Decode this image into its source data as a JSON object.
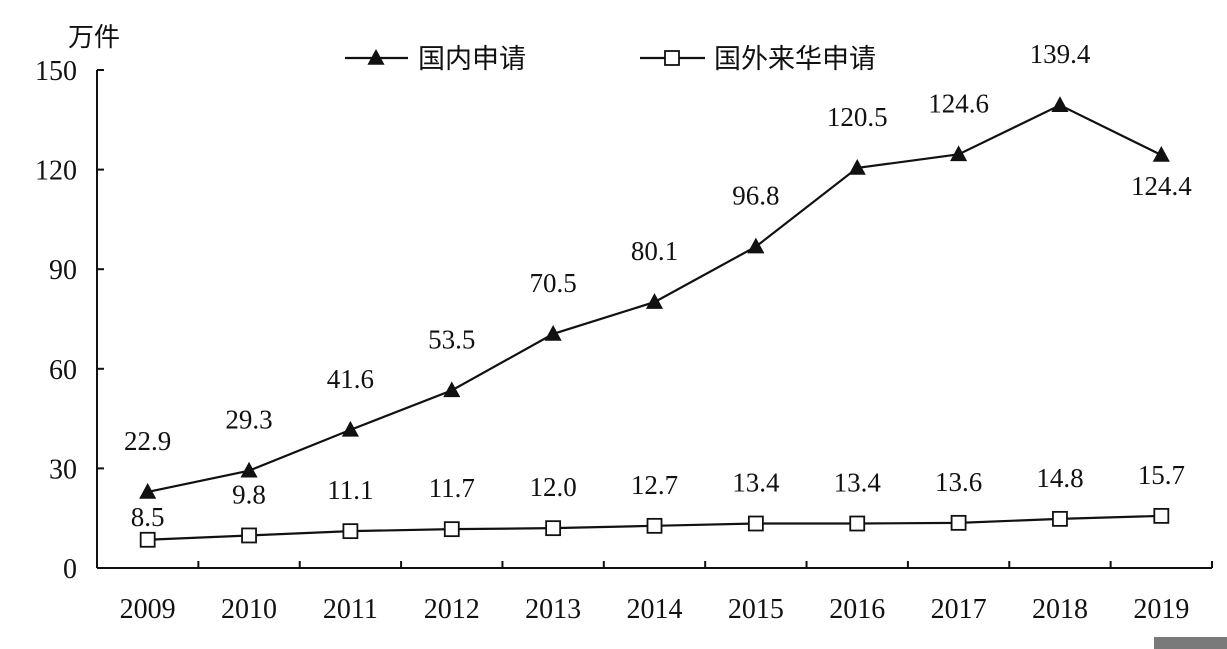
{
  "chart_data": {
    "type": "line",
    "title": "",
    "ylabel": "万件",
    "xlabel": "",
    "ylim": [
      0,
      150
    ],
    "yticks": [
      0,
      30,
      60,
      90,
      120,
      150
    ],
    "grid": false,
    "legend": "top-center",
    "categories": [
      "2009",
      "2010",
      "2011",
      "2012",
      "2013",
      "2014",
      "2015",
      "2016",
      "2017",
      "2018",
      "2019"
    ],
    "series": [
      {
        "name": "国内申请",
        "marker": "filled-triangle",
        "values": [
          22.9,
          29.3,
          41.6,
          53.5,
          70.5,
          80.1,
          96.8,
          120.5,
          124.6,
          139.4,
          124.4
        ],
        "labels": [
          "22.9",
          "29.3",
          "41.6",
          "53.5",
          "70.5",
          "80.1",
          "96.8",
          "120.5",
          "124.6",
          "139.4",
          "124.4"
        ]
      },
      {
        "name": "国外来华申请",
        "marker": "hollow-square",
        "values": [
          8.5,
          9.8,
          11.1,
          11.7,
          12.0,
          12.7,
          13.4,
          13.4,
          13.6,
          14.8,
          15.7
        ],
        "labels": [
          "8.5",
          "9.8",
          "11.1",
          "11.7",
          "12.0",
          "12.7",
          "13.4",
          "13.4",
          "13.6",
          "14.8",
          "15.7"
        ]
      }
    ],
    "colors": {
      "line": "#111111",
      "marker_fill": "#111111",
      "hollow_fill": "#ffffff"
    }
  }
}
